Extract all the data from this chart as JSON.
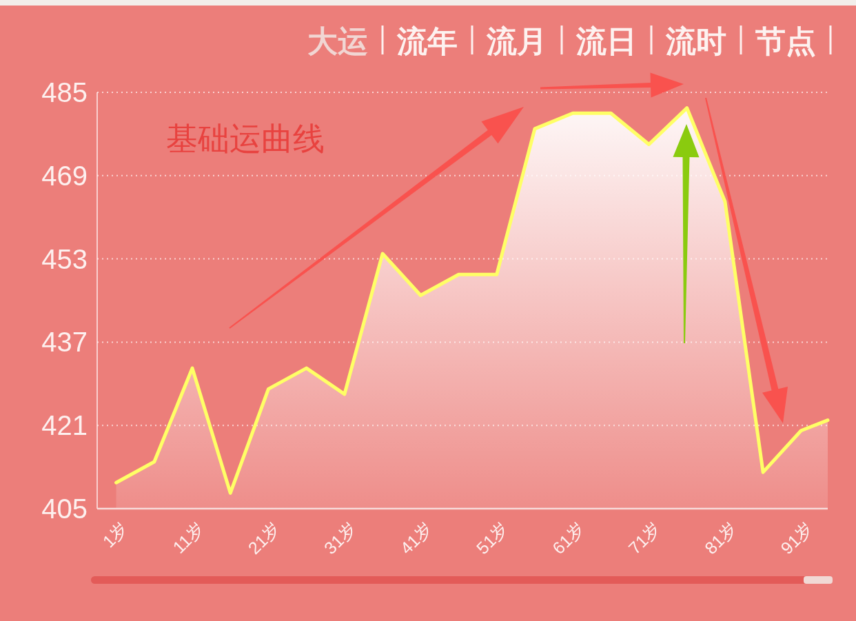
{
  "chart_data": {
    "type": "area",
    "color": "#ffff66",
    "line_style": "solid",
    "x": [
      1,
      6,
      11,
      16,
      21,
      26,
      31,
      36,
      41,
      46,
      51,
      56,
      61,
      66,
      71,
      76,
      81,
      86,
      91,
      94.5
    ],
    "values": [
      410,
      414,
      432,
      408,
      428,
      432,
      427,
      454,
      446,
      450,
      450,
      478,
      481,
      481,
      475,
      482,
      464,
      412,
      420,
      422
    ],
    "xlim": [
      -1.5,
      94.5
    ],
    "xticks": [
      {
        "value": 1,
        "label": "1岁"
      },
      {
        "value": 11,
        "label": "11岁"
      },
      {
        "value": 21,
        "label": "21岁"
      },
      {
        "value": 31,
        "label": "31岁"
      },
      {
        "value": 41,
        "label": "41岁"
      },
      {
        "value": 51,
        "label": "51岁"
      },
      {
        "value": 61,
        "label": "61岁"
      },
      {
        "value": 71,
        "label": "71岁"
      },
      {
        "value": 81,
        "label": "81岁"
      },
      {
        "value": 91,
        "label": "91岁"
      }
    ],
    "ylim": [
      405,
      485
    ],
    "yticks": [
      405,
      421,
      437,
      453,
      469,
      485
    ],
    "grid": "y",
    "annotations": [
      "大运",
      "流年",
      "流月",
      "流日",
      "流时",
      "节点",
      "基础运曲线"
    ]
  }
}
